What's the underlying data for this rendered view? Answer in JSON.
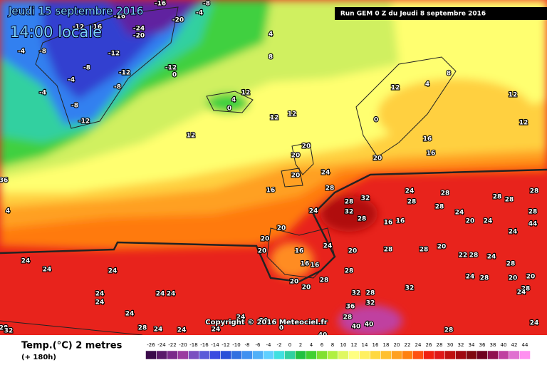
{
  "header": {
    "date": "Jeudi 15 septembre 2016",
    "time": "14:00 locale",
    "run": "Run GEM 0 Z du Jeudi 8 septembre 2016"
  },
  "copyright": "Copyright © 2016 Meteociel.fr",
  "footer": {
    "variable": "Temp.(°C) 2 metres",
    "lead": "(+ 180h)"
  },
  "map_labels": [
    -16,
    -8,
    -20,
    -24,
    -20,
    -16,
    -16,
    -12,
    -8,
    -12,
    -12,
    0,
    -8,
    -12,
    -8,
    -4,
    -4,
    -8,
    -12,
    -4,
    4,
    8,
    -4,
    12,
    4,
    0,
    12,
    12,
    12,
    12,
    4,
    8,
    12,
    12,
    0,
    16,
    16,
    20,
    20,
    20,
    20,
    16,
    24,
    28,
    28,
    32,
    32,
    24,
    24,
    28,
    28,
    28,
    28,
    28,
    28,
    16,
    16,
    28,
    24,
    24,
    20,
    44,
    24,
    20,
    20,
    20,
    16,
    16,
    16,
    24,
    20,
    28,
    28,
    20,
    22,
    28,
    24,
    28,
    20,
    28,
    28,
    20,
    20,
    32,
    28,
    32,
    24,
    28,
    20,
    28,
    36,
    32,
    28,
    40,
    40,
    40,
    24,
    24,
    24,
    24,
    24,
    24,
    24,
    24,
    24,
    24,
    24,
    24,
    28,
    28,
    32,
    28,
    24,
    28,
    24,
    20,
    0,
    4,
    36
  ],
  "legend": {
    "ticks": [
      -26,
      -24,
      -22,
      -20,
      -18,
      -16,
      -14,
      -12,
      -10,
      -8,
      -6,
      -4,
      -2,
      0,
      2,
      4,
      6,
      8,
      10,
      12,
      14,
      16,
      18,
      20,
      22,
      24,
      26,
      28,
      30,
      32,
      34,
      36,
      38,
      40,
      42,
      44
    ],
    "colors": [
      "#3a0a4a",
      "#5a1a6a",
      "#7a2a8a",
      "#9a3aa0",
      "#7a50c0",
      "#5a5ad8",
      "#3a4ae0",
      "#2850d8",
      "#3070e0",
      "#4090f0",
      "#50b0f8",
      "#60d0ff",
      "#40e0e0",
      "#30d0a0",
      "#20c040",
      "#40d030",
      "#80e030",
      "#b0f040",
      "#e0f860",
      "#ffff80",
      "#fff060",
      "#ffd840",
      "#ffc030",
      "#ffa020",
      "#ff8010",
      "#ff5010",
      "#f02010",
      "#e01818",
      "#c01010",
      "#a00810",
      "#800810",
      "#700020",
      "#901050",
      "#c040a0",
      "#e070d0",
      "#ff90f0"
    ]
  }
}
